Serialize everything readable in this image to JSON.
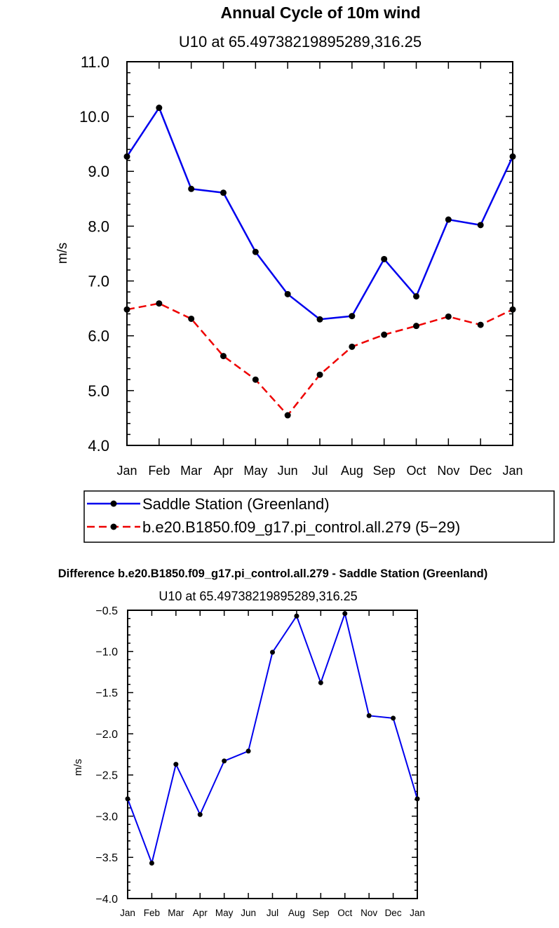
{
  "chart_data": [
    {
      "type": "line",
      "title": "Annual Cycle of 10m wind",
      "subtitle": "U10 at 65.49738219895289,316.25",
      "xlabel": "",
      "ylabel": "m/s",
      "categories": [
        "Jan",
        "Feb",
        "Mar",
        "Apr",
        "May",
        "Jun",
        "Jul",
        "Aug",
        "Sep",
        "Oct",
        "Nov",
        "Dec",
        "Jan"
      ],
      "ylim": [
        4.0,
        11.0
      ],
      "yticks": [
        "4.0",
        "5.0",
        "6.0",
        "7.0",
        "8.0",
        "9.0",
        "10.0",
        "11.0"
      ],
      "grid": false,
      "legend_position": "bottom",
      "series": [
        {
          "name": "Saddle Station (Greenland)",
          "color": "#0000ee",
          "style": "solid",
          "values": [
            9.27,
            10.16,
            8.68,
            8.61,
            7.53,
            6.76,
            6.3,
            6.36,
            7.4,
            6.72,
            8.12,
            8.02,
            9.27
          ]
        },
        {
          "name": "b.e20.B1850.f09_g17.pi_control.all.279 (5−29)",
          "color": "#ee0000",
          "style": "dashed",
          "values": [
            6.48,
            6.59,
            6.31,
            5.63,
            5.2,
            4.55,
            5.29,
            5.8,
            6.02,
            6.18,
            6.35,
            6.2,
            6.48
          ]
        }
      ]
    },
    {
      "type": "line",
      "title": "Difference b.e20.B1850.f09_g17.pi_control.all.279 - Saddle Station (Greenland)",
      "subtitle": "U10 at 65.49738219895289,316.25",
      "xlabel": "",
      "ylabel": "m/s",
      "categories": [
        "Jan",
        "Feb",
        "Mar",
        "Apr",
        "May",
        "Jun",
        "Jul",
        "Aug",
        "Sep",
        "Oct",
        "Nov",
        "Dec",
        "Jan"
      ],
      "ylim": [
        -4.0,
        -0.5
      ],
      "yticks": [
        "−4.0",
        "−3.5",
        "−3.0",
        "−2.5",
        "−2.0",
        "−1.5",
        "−1.0",
        "−0.5"
      ],
      "grid": false,
      "series": [
        {
          "color": "#0000ee",
          "style": "solid",
          "values": [
            -2.79,
            -3.57,
            -2.37,
            -2.98,
            -2.33,
            -2.21,
            -1.01,
            -0.57,
            -1.38,
            -0.54,
            -1.78,
            -1.81,
            -2.79
          ]
        }
      ]
    }
  ]
}
